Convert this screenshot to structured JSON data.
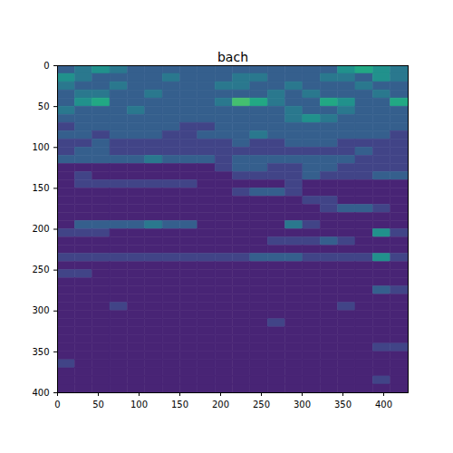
{
  "chart_data": {
    "type": "heatmap",
    "title": "bach",
    "color": "viridis",
    "xlim": [
      0,
      430
    ],
    "ylim": [
      400,
      0
    ],
    "xticks": [
      0,
      50,
      100,
      150,
      200,
      250,
      300,
      350,
      400
    ],
    "yticks": [
      0,
      50,
      100,
      150,
      200,
      250,
      300,
      350,
      400
    ],
    "zlim": [
      0,
      10
    ],
    "x_edges": [
      0,
      21.5,
      43,
      64.5,
      86,
      107.5,
      129,
      150.5,
      172,
      193.5,
      215,
      236.5,
      258,
      279.5,
      301,
      322.5,
      344,
      365.5,
      387,
      408.5,
      430
    ],
    "y_edges": [
      0,
      10,
      20,
      30,
      40,
      50,
      60,
      70,
      80,
      90,
      100,
      110,
      120,
      130,
      140,
      150,
      160,
      170,
      180,
      190,
      200,
      210,
      220,
      230,
      240,
      250,
      260,
      270,
      280,
      290,
      300,
      310,
      320,
      330,
      340,
      350,
      360,
      370,
      380,
      390,
      400
    ],
    "cells": [
      [
        3,
        4,
        5,
        4,
        3,
        3,
        3,
        3,
        3,
        3,
        3,
        3,
        3,
        3,
        3,
        3,
        5,
        6,
        5,
        4
      ],
      [
        5,
        4,
        3,
        3,
        3,
        3,
        4,
        3,
        3,
        3,
        4,
        4,
        3,
        3,
        3,
        4,
        4,
        3,
        5,
        4
      ],
      [
        4,
        3,
        3,
        4,
        3,
        3,
        3,
        3,
        3,
        4,
        4,
        3,
        3,
        4,
        3,
        3,
        3,
        4,
        3,
        3
      ],
      [
        3,
        4,
        4,
        3,
        3,
        4,
        3,
        3,
        3,
        3,
        3,
        3,
        4,
        3,
        4,
        3,
        3,
        3,
        4,
        3
      ],
      [
        3,
        5,
        6,
        3,
        3,
        3,
        3,
        3,
        3,
        4,
        7,
        6,
        4,
        3,
        3,
        6,
        5,
        3,
        3,
        6
      ],
      [
        4,
        3,
        3,
        3,
        4,
        3,
        3,
        3,
        3,
        3,
        3,
        3,
        3,
        4,
        3,
        3,
        4,
        3,
        3,
        3
      ],
      [
        3,
        3,
        3,
        3,
        3,
        3,
        3,
        3,
        3,
        3,
        3,
        3,
        3,
        4,
        5,
        4,
        3,
        3,
        3,
        3
      ],
      [
        2,
        3,
        3,
        3,
        3,
        3,
        3,
        2,
        2,
        3,
        3,
        3,
        3,
        3,
        3,
        3,
        3,
        3,
        3,
        3
      ],
      [
        3,
        3,
        2,
        3,
        3,
        3,
        2,
        2,
        3,
        3,
        3,
        4,
        3,
        3,
        3,
        3,
        3,
        3,
        3,
        2
      ],
      [
        2,
        2,
        3,
        2,
        2,
        2,
        2,
        2,
        2,
        2,
        3,
        2,
        2,
        3,
        3,
        3,
        2,
        2,
        2,
        2
      ],
      [
        2,
        3,
        3,
        2,
        2,
        2,
        2,
        2,
        2,
        2,
        2,
        2,
        2,
        2,
        2,
        2,
        2,
        3,
        2,
        2
      ],
      [
        3,
        3,
        3,
        3,
        3,
        4,
        3,
        3,
        3,
        2,
        3,
        3,
        3,
        3,
        3,
        3,
        3,
        2,
        2,
        2
      ],
      [
        1,
        1,
        1,
        1,
        1,
        1,
        1,
        1,
        1,
        2,
        3,
        3,
        2,
        2,
        3,
        3,
        2,
        2,
        2,
        2
      ],
      [
        1,
        2,
        1,
        1,
        1,
        1,
        1,
        1,
        1,
        1,
        2,
        2,
        2,
        2,
        3,
        2,
        2,
        2,
        3,
        3
      ],
      [
        1,
        2,
        2,
        2,
        2,
        2,
        2,
        2,
        1,
        1,
        1,
        1,
        1,
        2,
        1,
        1,
        1,
        1,
        1,
        1
      ],
      [
        1,
        1,
        1,
        1,
        1,
        1,
        1,
        1,
        1,
        1,
        2,
        3,
        3,
        2,
        1,
        1,
        1,
        1,
        1,
        1
      ],
      [
        1,
        1,
        1,
        1,
        1,
        1,
        1,
        1,
        1,
        1,
        1,
        1,
        1,
        1,
        2,
        2,
        1,
        1,
        1,
        1
      ],
      [
        1,
        1,
        1,
        1,
        1,
        1,
        1,
        1,
        1,
        1,
        1,
        1,
        1,
        1,
        1,
        2,
        3,
        3,
        2,
        1
      ],
      [
        1,
        1,
        1,
        1,
        1,
        1,
        1,
        1,
        1,
        1,
        1,
        1,
        1,
        1,
        1,
        1,
        1,
        1,
        1,
        1
      ],
      [
        1,
        3,
        3,
        3,
        3,
        4,
        3,
        3,
        1,
        1,
        1,
        1,
        1,
        4,
        2,
        1,
        1,
        1,
        1,
        1
      ],
      [
        2,
        2,
        2,
        1,
        1,
        1,
        1,
        1,
        1,
        1,
        1,
        1,
        1,
        1,
        1,
        1,
        1,
        1,
        5,
        2
      ],
      [
        1,
        1,
        1,
        1,
        1,
        1,
        1,
        1,
        1,
        1,
        1,
        1,
        2,
        2,
        2,
        3,
        2,
        1,
        1,
        1
      ],
      [
        1,
        1,
        1,
        1,
        1,
        1,
        1,
        1,
        1,
        1,
        1,
        1,
        1,
        1,
        1,
        1,
        1,
        1,
        1,
        1
      ],
      [
        2,
        2,
        2,
        2,
        2,
        2,
        2,
        2,
        2,
        2,
        2,
        3,
        3,
        3,
        2,
        2,
        2,
        2,
        5,
        2
      ],
      [
        1,
        1,
        1,
        1,
        1,
        1,
        1,
        1,
        1,
        1,
        1,
        1,
        1,
        1,
        1,
        1,
        1,
        1,
        1,
        1
      ],
      [
        2,
        2,
        1,
        1,
        1,
        1,
        1,
        1,
        1,
        1,
        1,
        1,
        1,
        1,
        1,
        1,
        1,
        1,
        1,
        1
      ],
      [
        1,
        1,
        1,
        1,
        1,
        1,
        1,
        1,
        1,
        1,
        1,
        1,
        1,
        1,
        1,
        1,
        1,
        1,
        1,
        1
      ],
      [
        1,
        1,
        1,
        1,
        1,
        1,
        1,
        1,
        1,
        1,
        1,
        1,
        1,
        1,
        1,
        1,
        1,
        1,
        3,
        2
      ],
      [
        1,
        1,
        1,
        1,
        1,
        1,
        1,
        1,
        1,
        1,
        1,
        1,
        1,
        1,
        1,
        1,
        1,
        1,
        1,
        1
      ],
      [
        1,
        1,
        1,
        2,
        1,
        1,
        1,
        1,
        1,
        1,
        1,
        1,
        1,
        1,
        1,
        1,
        2,
        1,
        1,
        1
      ],
      [
        1,
        1,
        1,
        1,
        1,
        1,
        1,
        1,
        1,
        1,
        1,
        1,
        1,
        1,
        1,
        1,
        1,
        1,
        1,
        1
      ],
      [
        1,
        1,
        1,
        1,
        1,
        1,
        1,
        1,
        1,
        1,
        1,
        1,
        2,
        1,
        1,
        1,
        1,
        1,
        1,
        1
      ],
      [
        1,
        1,
        1,
        1,
        1,
        1,
        1,
        1,
        1,
        1,
        1,
        1,
        1,
        1,
        1,
        1,
        1,
        1,
        1,
        1
      ],
      [
        1,
        1,
        1,
        1,
        1,
        1,
        1,
        1,
        1,
        1,
        1,
        1,
        1,
        1,
        1,
        1,
        1,
        1,
        1,
        1
      ],
      [
        1,
        1,
        1,
        1,
        1,
        1,
        1,
        1,
        1,
        1,
        1,
        1,
        1,
        1,
        1,
        1,
        1,
        1,
        2,
        2
      ],
      [
        1,
        1,
        1,
        1,
        1,
        1,
        1,
        1,
        1,
        1,
        1,
        1,
        1,
        1,
        1,
        1,
        1,
        1,
        1,
        1
      ],
      [
        2,
        1,
        1,
        1,
        1,
        1,
        1,
        1,
        1,
        1,
        1,
        1,
        1,
        1,
        1,
        1,
        1,
        1,
        1,
        1
      ],
      [
        1,
        1,
        1,
        1,
        1,
        1,
        1,
        1,
        1,
        1,
        1,
        1,
        1,
        1,
        1,
        1,
        1,
        1,
        1,
        1
      ],
      [
        1,
        1,
        1,
        1,
        1,
        1,
        1,
        1,
        1,
        1,
        1,
        1,
        1,
        1,
        1,
        1,
        1,
        1,
        2,
        1
      ],
      [
        1,
        1,
        1,
        1,
        1,
        1,
        1,
        1,
        1,
        1,
        1,
        1,
        1,
        1,
        1,
        1,
        1,
        1,
        1,
        1
      ]
    ]
  }
}
